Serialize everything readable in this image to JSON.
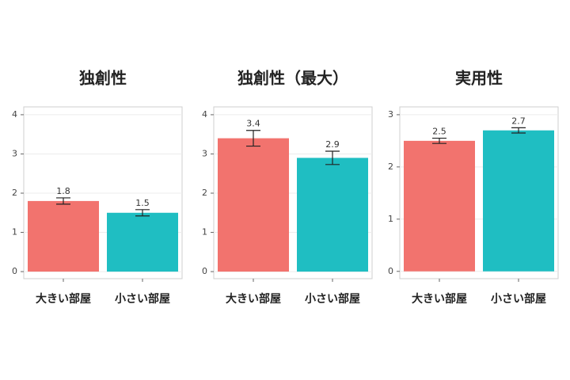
{
  "chart_data": [
    {
      "type": "bar",
      "title": "独創性",
      "categories": [
        "大きい部屋",
        "小さい部屋"
      ],
      "values": [
        1.8,
        1.5
      ],
      "errors": [
        0.08,
        0.08
      ],
      "colors": [
        "#f2736e",
        "#1fbec2"
      ],
      "ylim": [
        -0.18,
        4.2
      ],
      "yticks": [
        0,
        1,
        2,
        3,
        4
      ],
      "grid": true
    },
    {
      "type": "bar",
      "title": "独創性（最大）",
      "categories": [
        "大きい部屋",
        "小さい部屋"
      ],
      "values": [
        3.4,
        2.9
      ],
      "errors": [
        0.2,
        0.17
      ],
      "colors": [
        "#f2736e",
        "#1fbec2"
      ],
      "ylim": [
        -0.18,
        4.2
      ],
      "yticks": [
        0,
        1,
        2,
        3,
        4
      ],
      "grid": true
    },
    {
      "type": "bar",
      "title": "実用性",
      "categories": [
        "大きい部屋",
        "小さい部屋"
      ],
      "values": [
        2.5,
        2.7
      ],
      "errors": [
        0.05,
        0.05
      ],
      "colors": [
        "#f2736e",
        "#1fbec2"
      ],
      "ylim": [
        -0.14,
        3.15
      ],
      "yticks": [
        0,
        1,
        2,
        3
      ],
      "grid": true
    }
  ]
}
